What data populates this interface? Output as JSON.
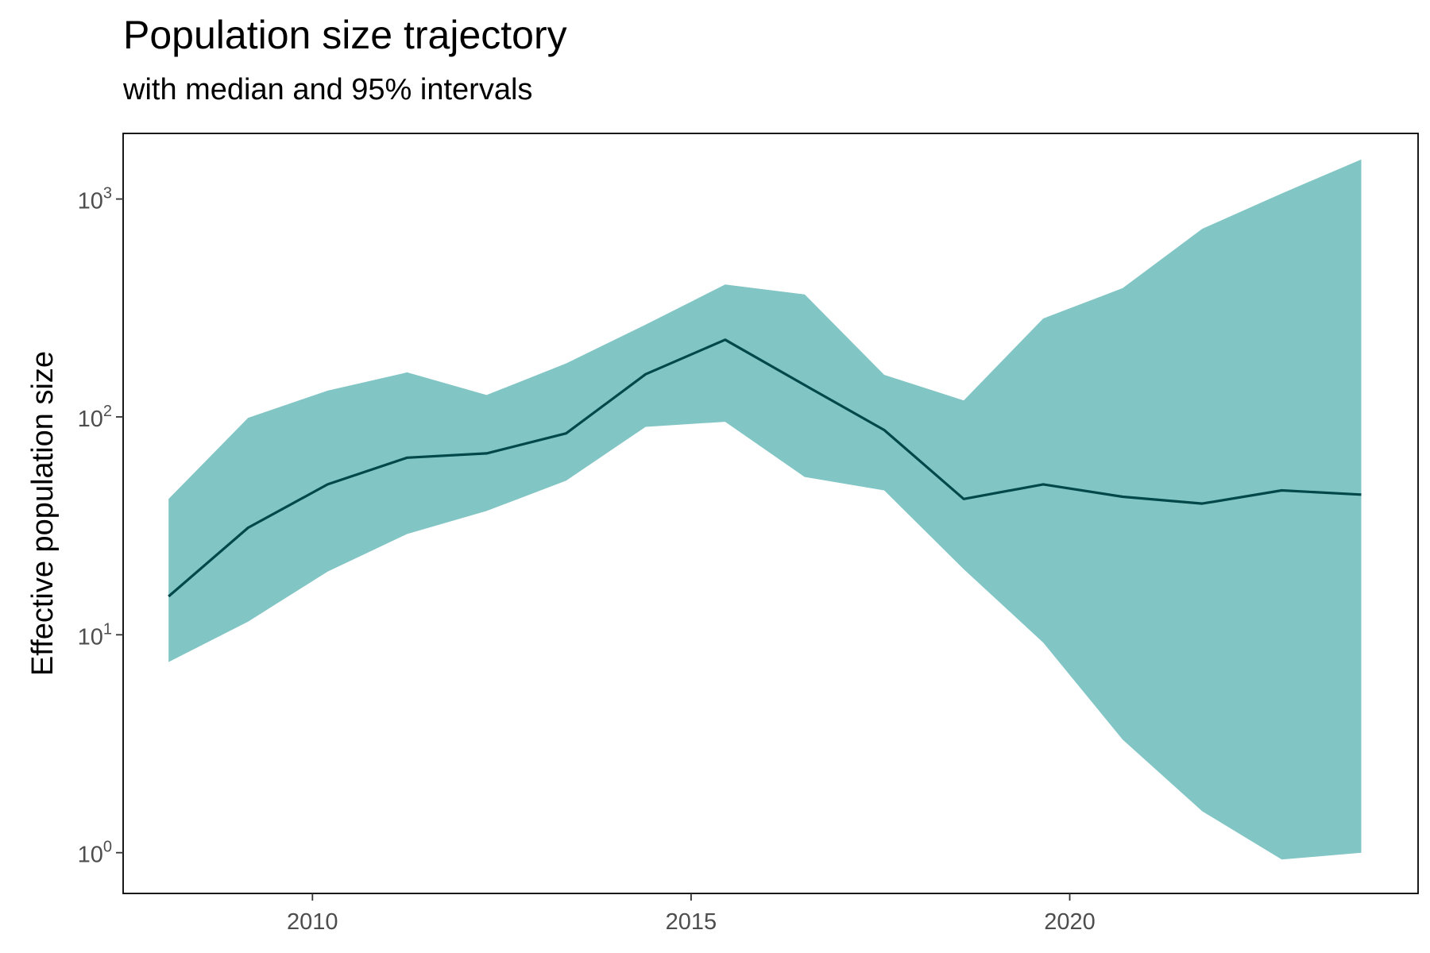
{
  "chart_data": {
    "type": "area",
    "title": "Population size trajectory",
    "subtitle": "with median and 95% intervals",
    "xlabel": "",
    "ylabel": "Effective population size",
    "y_scale": "log10",
    "ylim": [
      0.65,
      2000
    ],
    "xlim": [
      2007.5,
      2024.6
    ],
    "x_ticks": [
      2010,
      2015,
      2020
    ],
    "y_ticks": [
      {
        "value": 1,
        "base": "10",
        "exp": "0"
      },
      {
        "value": 10,
        "base": "10",
        "exp": "1"
      },
      {
        "value": 100,
        "base": "10",
        "exp": "2"
      },
      {
        "value": 1000,
        "base": "10",
        "exp": "3"
      }
    ],
    "grid": false,
    "colors": {
      "band": "#82c5c5",
      "median": "#00484a"
    },
    "series": [
      {
        "x": [
          2008.1,
          2009.15,
          2010.2,
          2011.25,
          2012.3,
          2013.35,
          2014.4,
          2015.45,
          2016.5,
          2017.55,
          2018.6,
          2019.65,
          2020.7,
          2021.75,
          2022.8,
          2023.85
        ],
        "median": [
          15,
          31,
          49,
          65,
          68,
          84,
          157,
          226,
          140,
          87,
          42,
          49,
          43,
          40,
          46,
          44
        ],
        "lower": [
          7.5,
          11.5,
          19.5,
          29,
          37,
          51,
          90,
          95,
          53,
          46,
          20,
          9.2,
          3.3,
          1.55,
          0.93,
          1.0
        ],
        "upper": [
          42,
          99,
          132,
          160,
          126,
          176,
          265,
          405,
          365,
          156,
          119,
          283,
          390,
          730,
          1060,
          1520
        ]
      }
    ]
  }
}
